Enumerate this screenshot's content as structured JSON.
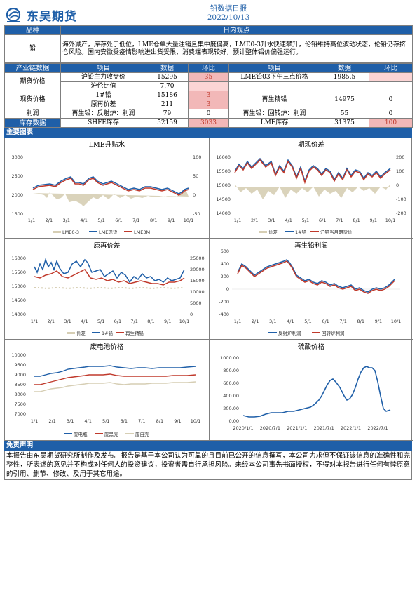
{
  "header": {
    "company": "东吴期货",
    "title": "铅数据日报",
    "date": "2022/10/13"
  },
  "colors": {
    "brand_blue": "#1f5fa8",
    "alert_red": "#c0392b",
    "alert_pink": "#f2b8b8",
    "beige": "#d6ceb4"
  },
  "view": {
    "col_product": "品种",
    "col_view": "日内观点",
    "product": "铅",
    "text": "海外减产，库存处于低位，LME仓单大量注销且集中度偏高，LME0-3升水快速攀升，伦铅维持高位波动状态，伦铅仍存挤仓风险。国内安徽受疫情影响进出货受限，消费端表现较好，预计整体铅价偏强运行。"
  },
  "table": {
    "headers": [
      "产业链数据",
      "项目",
      "数据",
      "环比",
      "项目",
      "数据",
      "环比"
    ],
    "groups": {
      "futures": "期货价格",
      "spot": "现货价格",
      "profit": "利润",
      "inventory": "库存数据"
    },
    "rows": [
      {
        "item1": "沪铅主力收盘价",
        "val1": "15295",
        "chg1": "35",
        "item2": "LME铅03下午三点价格",
        "val2": "1985.5",
        "chg2": "—"
      },
      {
        "item1": "沪伦比值",
        "val1": "7.70",
        "chg1": "—",
        "item2": "",
        "val2": "",
        "chg2": ""
      },
      {
        "item1": "1#铅",
        "val1": "15186",
        "chg1": "3",
        "item2": "再生精铅",
        "val2": "14975",
        "chg2": "0"
      },
      {
        "item1": "原再价差",
        "val1": "211",
        "chg1": "3",
        "item2": "",
        "val2": "",
        "chg2": ""
      },
      {
        "item1": "再生铅：反射炉：利润",
        "val1": "79",
        "chg1": "0",
        "item2": "再生铅：回转炉：利润",
        "val2": "55",
        "chg2": "0"
      },
      {
        "item1": "SHFE库存",
        "val1": "52159",
        "chg1": "3033",
        "item2": "LME库存",
        "val2": "31375",
        "chg2": "100"
      }
    ]
  },
  "charts_section": "主要图表",
  "charts": {
    "lme_spread": {
      "title": "LME升贴水",
      "left_ticks": [
        "3000",
        "2500",
        "2000",
        "1500"
      ],
      "right_ticks": [
        "100",
        "50",
        "0",
        "-50"
      ],
      "x_ticks": [
        "1/1",
        "2/1",
        "3/1",
        "4/1",
        "5/1",
        "6/1",
        "7/1",
        "8/1",
        "9/1",
        "10/1"
      ],
      "legend": [
        "LME0-3",
        "LME现货",
        "LME3M"
      ]
    },
    "spot_futures": {
      "title": "期现价差",
      "left_ticks": [
        "16000",
        "15500",
        "15000",
        "14500",
        "14000"
      ],
      "right_ticks": [
        "200",
        "100",
        "0",
        "-100",
        "-200"
      ],
      "x_ticks": [
        "1/1",
        "2/1",
        "3/1",
        "4/1",
        "5/1",
        "6/1",
        "7/1",
        "8/1",
        "9/1",
        "10/1"
      ],
      "legend": [
        "价差",
        "1#铅",
        "沪铅当月期货价"
      ]
    },
    "orig_recycled": {
      "title": "原再价差",
      "left_ticks": [
        "16000",
        "15500",
        "15000",
        "14500",
        "14000"
      ],
      "right_ticks": [
        "25000",
        "20000",
        "15000",
        "10000",
        "5000",
        "0"
      ],
      "x_ticks": [
        "1/1",
        "2/1",
        "3/1",
        "4/1",
        "5/1",
        "6/1",
        "7/1",
        "8/1",
        "9/1",
        "10/1"
      ],
      "legend": [
        "价差",
        "1#铅",
        "再生精铅"
      ]
    },
    "recycled_profit": {
      "title": "再生铅利润",
      "left_ticks": [
        "600",
        "400",
        "200",
        "0",
        "-200",
        "-400"
      ],
      "x_ticks": [
        "1/1",
        "2/1",
        "3/1",
        "4/1",
        "5/1",
        "6/1",
        "7/1",
        "8/1",
        "9/1",
        "10/1"
      ],
      "legend": [
        "反射炉利润",
        "回转炉利润"
      ]
    },
    "scrap_battery": {
      "title": "废电池价格",
      "left_ticks": [
        "10000",
        "9500",
        "9000",
        "8500",
        "8000",
        "7500",
        "7000"
      ],
      "x_ticks": [
        "1/1",
        "2/1",
        "3/1",
        "4/1",
        "5/1",
        "6/1",
        "7/1",
        "8/1",
        "9/1",
        "10/1"
      ],
      "legend": [
        "废电瓶",
        "废黑壳",
        "废白壳"
      ]
    },
    "sulfuric_acid": {
      "title": "硫酸价格",
      "left_ticks": [
        "1000.00",
        "800.00",
        "600.00",
        "400.00",
        "200.00",
        "0.00"
      ],
      "x_ticks": [
        "2020/1/1",
        "2020/7/1",
        "2021/1/1",
        "2021/7/1",
        "2022/1/1",
        "2022/7/1"
      ]
    }
  },
  "disclaimer": {
    "title": "免责声明",
    "text": "本报告由东吴期货研究所制作及发布。报告是基于本公司认为可靠的且目前已公开的信息撰写，本公司力求但不保证该信息的准确性和完整性，所表述的意见并不构成对任何人的投资建议，投资者需自行承担风险。未经本公司事先书面授权，不得对本报告进行任何有悖原意的引用、删节、修改、及用于其它用途。"
  }
}
